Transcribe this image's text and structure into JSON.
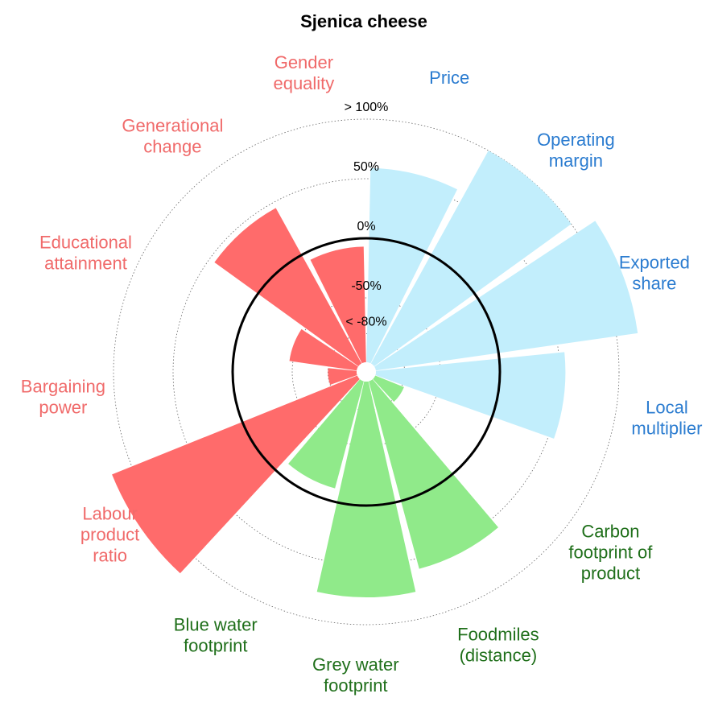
{
  "chart_data": {
    "type": "polar_bar",
    "title": "Sjenica cheese",
    "categories": [
      "Price",
      "Operating\nmargin",
      "Exported\nshare",
      "Local\nmultiplier",
      "Carbon\nfootprint of\nproduct",
      "Foodmiles\n(distance)",
      "Grey water\nfootprint",
      "Blue water\nfootprint",
      "Labour\nproduct\nratio",
      "Bargaining\npower",
      "Educational\nattainment",
      "Generational\nchange",
      "Gender\nequality"
    ],
    "values": [
      59,
      100,
      118,
      55,
      -78,
      59,
      77,
      -11,
      118,
      -80,
      -47,
      45,
      -7
    ],
    "colors": [
      "#c2eefc",
      "#c2eefc",
      "#c2eefc",
      "#c2eefc",
      "#90ea8a",
      "#90ea8a",
      "#90ea8a",
      "#90ea8a",
      "#ff6b6b",
      "#ff6b6b",
      "#ff6b6b",
      "#ff6b6b",
      "#ff6b6b"
    ],
    "label_colors": [
      "#2b7cd0",
      "#2b7cd0",
      "#2b7cd0",
      "#2b7cd0",
      "#1f6f1a",
      "#1f6f1a",
      "#1f6f1a",
      "#1f6f1a",
      "#f06a6a",
      "#f06a6a",
      "#f06a6a",
      "#f06a6a",
      "#f06a6a"
    ],
    "ylim": [
      -80,
      100
    ],
    "yticks": [
      {
        "value": -80,
        "label": "< -80%"
      },
      {
        "value": -50,
        "label": "-50%"
      },
      {
        "value": 0,
        "label": "0%"
      },
      {
        "value": 50,
        "label": "50%"
      },
      {
        "value": 100,
        "label": "> 100%"
      }
    ],
    "grid": true
  }
}
